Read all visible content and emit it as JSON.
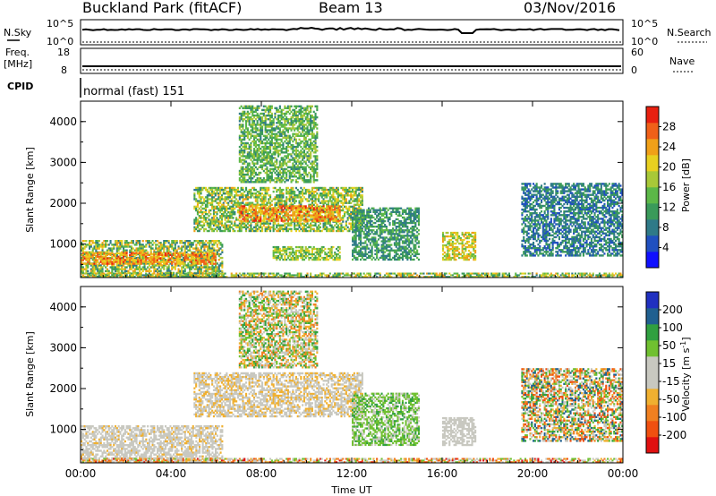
{
  "header": {
    "station": "Buckland Park (fitACF)",
    "beam": "Beam 13",
    "date": "03/Nov/2016"
  },
  "strips": {
    "nsky_label": "N.Sky",
    "nsky_ticks": [
      "10^5",
      "10^0"
    ],
    "nsearch_label": "N.Search",
    "nsearch_ticks": [
      "10^5",
      "10^0"
    ],
    "freq_label": "Freq.",
    "freq_unit": "[MHz]",
    "freq_ticks": [
      "18",
      "8"
    ],
    "nave_label": "Nave",
    "nave_ticks": [
      "60",
      "0"
    ],
    "cpid_label": "CPID",
    "cpid_value": "normal (fast) 151"
  },
  "chart_data": [
    {
      "type": "heatmap",
      "name": "power",
      "ylabel": "Slant Range [km]",
      "yticks": [
        "4000",
        "3000",
        "2000",
        "1000"
      ],
      "xticks": [
        "00:00",
        "04:00",
        "08:00",
        "12:00",
        "16:00",
        "20:00",
        "00:00"
      ],
      "x_range": [
        "00:00",
        "24:00"
      ],
      "y_range_km": [
        180,
        4500
      ],
      "colorbar": {
        "label": "Power [dB]",
        "ticks": [
          "28",
          "24",
          "20",
          "16",
          "12",
          "8",
          "4"
        ],
        "range": [
          0,
          30
        ],
        "colors": [
          "#1010ff",
          "#2050c0",
          "#2f7a88",
          "#3a9a5a",
          "#5cb848",
          "#a8c838",
          "#e8d020",
          "#f0a018",
          "#f06018",
          "#e82010"
        ]
      },
      "regions": [
        {
          "t0": 0.0,
          "t1": 6.3,
          "r0": 180,
          "r1": 1100,
          "v0": 6,
          "v1": 24
        },
        {
          "t0": 0.0,
          "t1": 6.0,
          "r0": 500,
          "r1": 800,
          "v0": 18,
          "v1": 28
        },
        {
          "t0": 5.0,
          "t1": 12.5,
          "r0": 1300,
          "r1": 2400,
          "v0": 8,
          "v1": 22
        },
        {
          "t0": 7.0,
          "t1": 11.5,
          "r0": 1550,
          "r1": 1950,
          "v0": 18,
          "v1": 28
        },
        {
          "t0": 7.0,
          "t1": 10.5,
          "r0": 2500,
          "r1": 4400,
          "v0": 8,
          "v1": 18
        },
        {
          "t0": 8.5,
          "t1": 11.5,
          "r0": 600,
          "r1": 950,
          "v0": 10,
          "v1": 20
        },
        {
          "t0": 12.0,
          "t1": 15.0,
          "r0": 600,
          "r1": 1900,
          "v0": 6,
          "v1": 14
        },
        {
          "t0": 16.0,
          "t1": 17.5,
          "r0": 600,
          "r1": 1300,
          "v0": 12,
          "v1": 24
        },
        {
          "t0": 19.5,
          "t1": 24.0,
          "r0": 700,
          "r1": 2500,
          "v0": 4,
          "v1": 12
        },
        {
          "t0": 0.0,
          "t1": 24.0,
          "r0": 180,
          "r1": 300,
          "v0": 8,
          "v1": 24
        }
      ]
    },
    {
      "type": "heatmap",
      "name": "velocity",
      "ylabel": "Slant Range [km]",
      "yticks": [
        "4000",
        "3000",
        "2000",
        "1000"
      ],
      "xticks": [
        "00:00",
        "04:00",
        "08:00",
        "12:00",
        "16:00",
        "20:00",
        "00:00"
      ],
      "x_range": [
        "00:00",
        "24:00"
      ],
      "y_range_km": [
        180,
        4500
      ],
      "xlabel": "Time UT",
      "colorbar": {
        "label": "Velocity [m s^-1]",
        "ticks": [
          "200",
          "100",
          "50",
          "15",
          "-15",
          "-50",
          "-100",
          "-200"
        ],
        "range": [
          -250,
          250
        ],
        "colors": [
          "#e01010",
          "#f05010",
          "#f08020",
          "#f0b030",
          "#c8c8c0",
          "#c8c8c0",
          "#70c030",
          "#30a040",
          "#206090",
          "#2030c0"
        ]
      },
      "regions": [
        {
          "t0": 0.0,
          "t1": 6.3,
          "r0": 180,
          "r1": 1100,
          "v0": -60,
          "v1": 20
        },
        {
          "t0": 5.0,
          "t1": 12.5,
          "r0": 1300,
          "r1": 2400,
          "v0": -80,
          "v1": 20
        },
        {
          "t0": 7.0,
          "t1": 10.5,
          "r0": 2500,
          "r1": 4400,
          "v0": -150,
          "v1": 150
        },
        {
          "t0": 12.0,
          "t1": 15.0,
          "r0": 600,
          "r1": 1900,
          "v0": 20,
          "v1": 120
        },
        {
          "t0": 16.0,
          "t1": 17.5,
          "r0": 600,
          "r1": 1300,
          "v0": -20,
          "v1": 20
        },
        {
          "t0": 19.5,
          "t1": 24.0,
          "r0": 700,
          "r1": 2500,
          "v0": -200,
          "v1": 200
        },
        {
          "t0": 0.0,
          "t1": 24.0,
          "r0": 180,
          "r1": 300,
          "v0": -220,
          "v1": 100
        }
      ]
    }
  ]
}
